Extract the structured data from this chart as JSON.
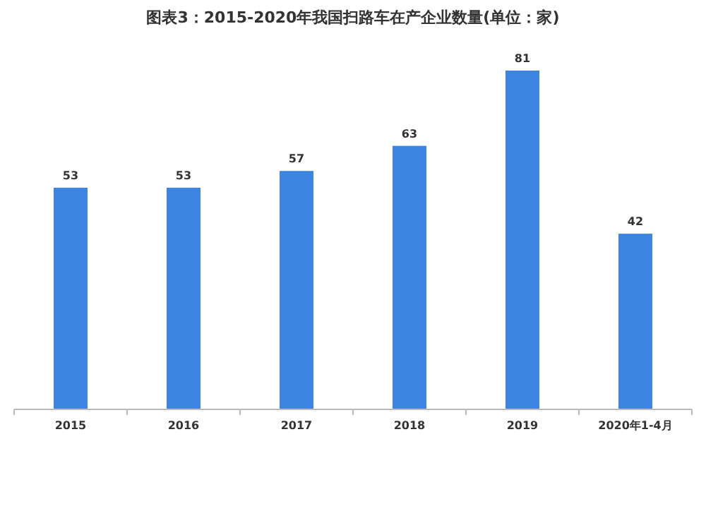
{
  "chart_data": {
    "type": "bar",
    "title": "图表3：2015-2020年我国扫路车在产企业数量(单位：家)",
    "categories": [
      "2015",
      "2016",
      "2017",
      "2018",
      "2019",
      "2020年1-4月"
    ],
    "values": [
      53,
      53,
      57,
      63,
      81,
      42
    ],
    "color": "#3d85e0",
    "data_labels": true
  }
}
